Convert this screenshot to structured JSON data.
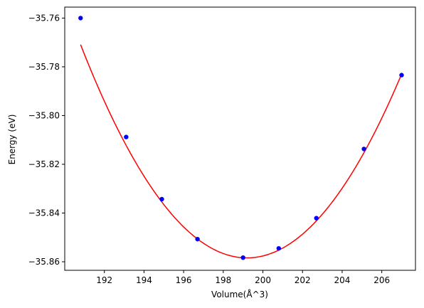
{
  "chart_data": {
    "type": "scatter",
    "title": "",
    "xlabel": "Volume(Å^3)",
    "ylabel": "Energy (eV)",
    "xlim": [
      190.0,
      207.7
    ],
    "ylim": [
      -35.8635,
      -35.7555
    ],
    "xticks": [
      192,
      194,
      196,
      198,
      200,
      202,
      204,
      206
    ],
    "xtick_labels": [
      "192",
      "194",
      "196",
      "198",
      "200",
      "202",
      "204",
      "206"
    ],
    "yticks": [
      -35.86,
      -35.84,
      -35.82,
      -35.8,
      -35.78,
      -35.76
    ],
    "ytick_labels": [
      "−35.86",
      "−35.84",
      "−35.82",
      "−35.80",
      "−35.78",
      "−35.76"
    ],
    "grid": false,
    "series": [
      {
        "type": "scatter",
        "color": "#0000ff",
        "x": [
          190.8,
          193.1,
          194.9,
          196.7,
          199.0,
          200.8,
          202.7,
          205.1,
          207.0
        ],
        "y": [
          -35.76,
          -35.8088,
          -35.8343,
          -35.8507,
          -35.8583,
          -35.8545,
          -35.8421,
          -35.8137,
          -35.7834
        ]
      },
      {
        "type": "line",
        "color": "#ff0000",
        "fit": {
          "kind": "quadratic",
          "x0": 199.2,
          "a": 0.00124,
          "c": -35.8584
        },
        "x_range": [
          190.8,
          207.0
        ]
      }
    ]
  }
}
